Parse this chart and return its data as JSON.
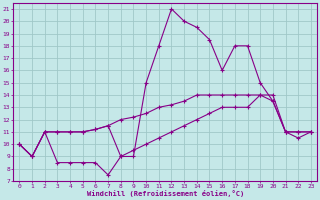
{
  "xlabel": "Windchill (Refroidissement éolien,°C)",
  "xlim": [
    -0.5,
    23.5
  ],
  "ylim": [
    7,
    21.5
  ],
  "xticks": [
    0,
    1,
    2,
    3,
    4,
    5,
    6,
    7,
    8,
    9,
    10,
    11,
    12,
    13,
    14,
    15,
    16,
    17,
    18,
    19,
    20,
    21,
    22,
    23
  ],
  "yticks": [
    7,
    8,
    9,
    10,
    11,
    12,
    13,
    14,
    15,
    16,
    17,
    18,
    19,
    20,
    21
  ],
  "bg_color": "#c5e8e8",
  "grid_color": "#a0c8c8",
  "line_color": "#880088",
  "line1_y": [
    10,
    9,
    11,
    8.5,
    8.5,
    8.5,
    8.5,
    7.5,
    9.0,
    9.0,
    15,
    18,
    21,
    20,
    19.5,
    18.5,
    16,
    18,
    18,
    15,
    13.5,
    11,
    11,
    11
  ],
  "line2_y": [
    10,
    9,
    11,
    11,
    11,
    11,
    11.2,
    11.5,
    12,
    12.2,
    12.5,
    13,
    13.2,
    13.5,
    14,
    14,
    14,
    14,
    14,
    14,
    13.5,
    11,
    11,
    11
  ],
  "line3_y": [
    10,
    9,
    11,
    11,
    11,
    11,
    11.2,
    11.5,
    9.0,
    9.5,
    10,
    10.5,
    11,
    11.5,
    12,
    12.5,
    13,
    13,
    13,
    14,
    14,
    11,
    10.5,
    11
  ]
}
